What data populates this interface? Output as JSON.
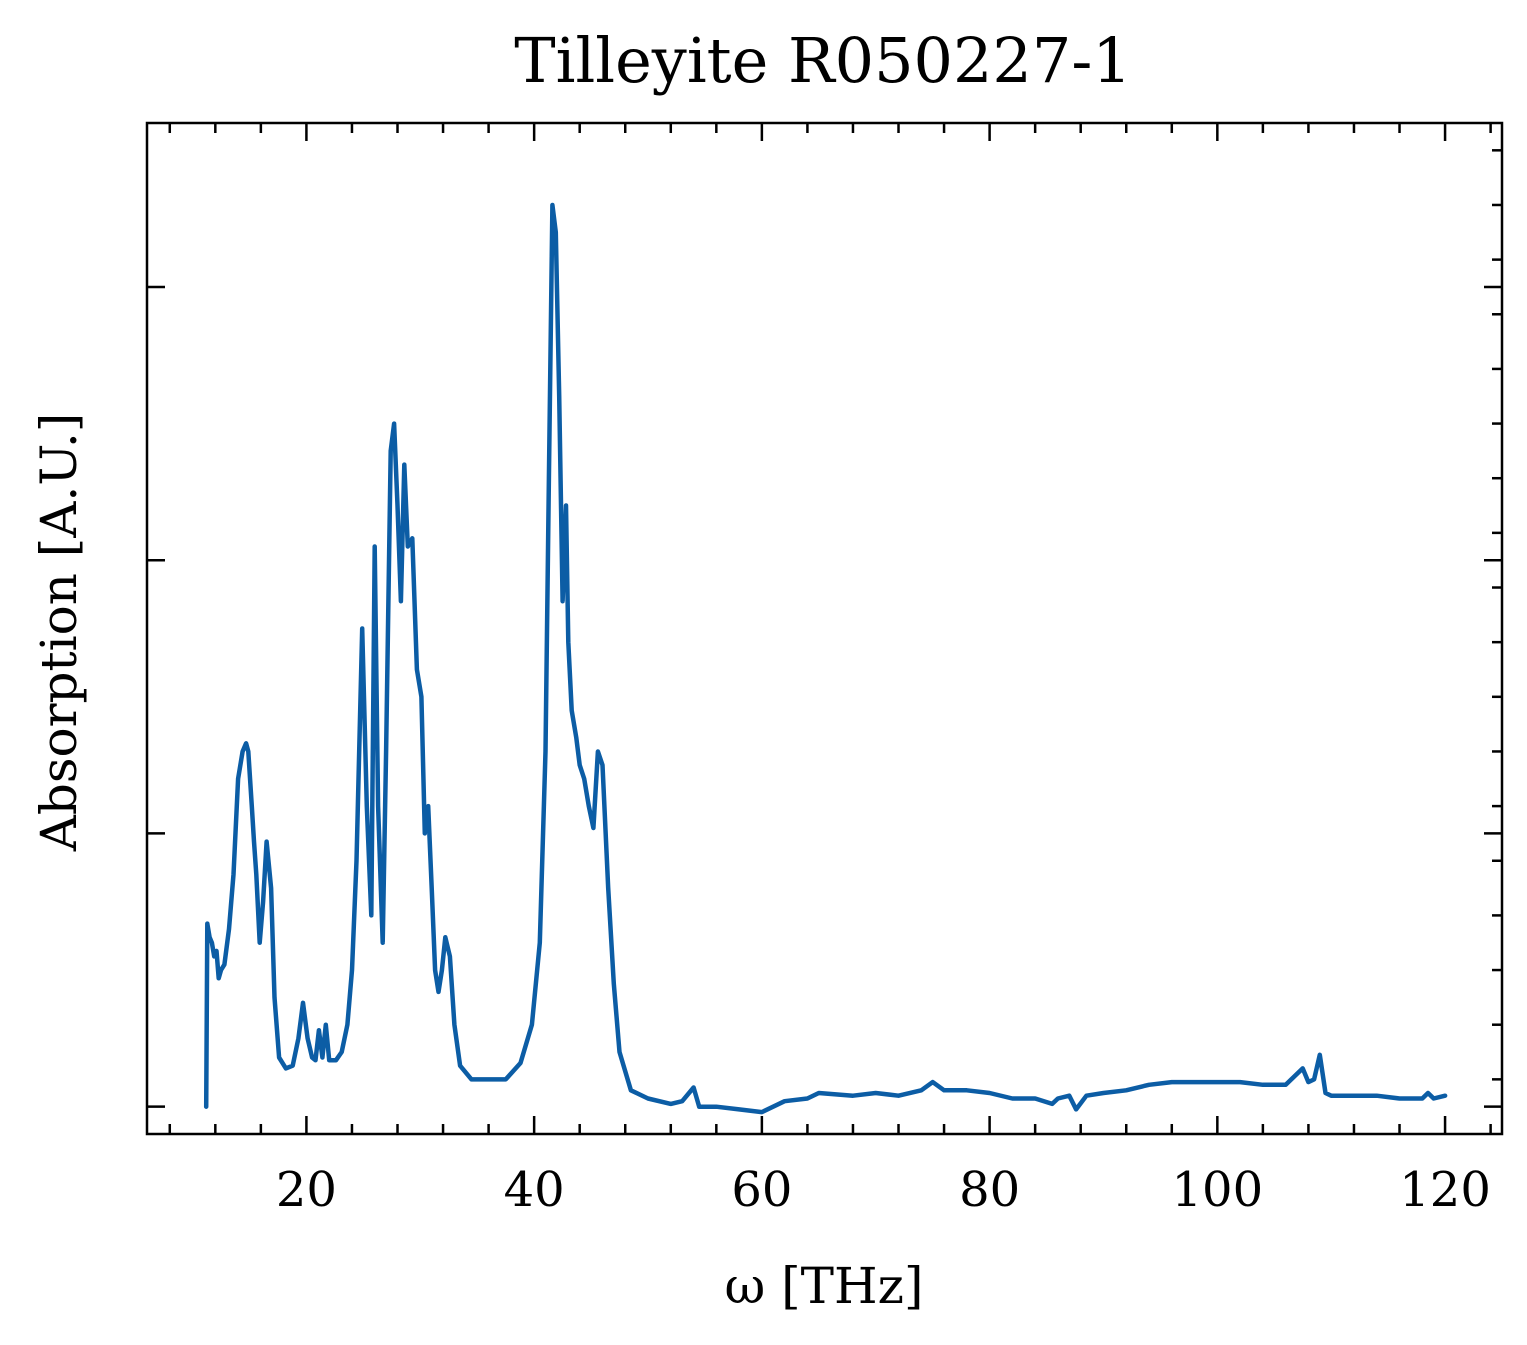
{
  "chart_data": {
    "type": "line",
    "title": "Tilleyite R050227-1",
    "xlabel": "ω [THz]",
    "ylabel": "Absorption [A.U.]",
    "xlim": [
      6,
      125
    ],
    "ylim": [
      -0.1,
      3.6
    ],
    "x_ticks": [
      20,
      40,
      60,
      80,
      100,
      120
    ],
    "x_tick_labels": [
      "20",
      "40",
      "60",
      "80",
      100,
      120
    ],
    "x_minor_step": 4,
    "y_ticks": [
      0,
      1,
      2,
      3
    ],
    "y_tick_labels_shown": false,
    "y_minor_step": 0.2,
    "grid": false,
    "line_color": "#0c5da5",
    "series": [
      {
        "values": [
          [
            11.2,
            0.0
          ],
          [
            11.3,
            0.67
          ],
          [
            11.5,
            0.62
          ],
          [
            11.7,
            0.6
          ],
          [
            11.9,
            0.55
          ],
          [
            12.1,
            0.57
          ],
          [
            12.3,
            0.47
          ],
          [
            12.5,
            0.5
          ],
          [
            12.8,
            0.52
          ],
          [
            13.2,
            0.65
          ],
          [
            13.6,
            0.85
          ],
          [
            14.0,
            1.2
          ],
          [
            14.4,
            1.3
          ],
          [
            14.7,
            1.33
          ],
          [
            14.9,
            1.3
          ],
          [
            15.2,
            1.1
          ],
          [
            15.4,
            0.97
          ],
          [
            15.6,
            0.85
          ],
          [
            15.9,
            0.6
          ],
          [
            16.2,
            0.75
          ],
          [
            16.5,
            0.97
          ],
          [
            16.9,
            0.8
          ],
          [
            17.2,
            0.4
          ],
          [
            17.6,
            0.18
          ],
          [
            18.2,
            0.14
          ],
          [
            18.8,
            0.15
          ],
          [
            19.3,
            0.25
          ],
          [
            19.7,
            0.38
          ],
          [
            20.1,
            0.25
          ],
          [
            20.5,
            0.18
          ],
          [
            20.8,
            0.17
          ],
          [
            21.1,
            0.28
          ],
          [
            21.4,
            0.18
          ],
          [
            21.7,
            0.3
          ],
          [
            22.0,
            0.17
          ],
          [
            22.6,
            0.17
          ],
          [
            23.1,
            0.2
          ],
          [
            23.6,
            0.3
          ],
          [
            24.0,
            0.5
          ],
          [
            24.4,
            0.9
          ],
          [
            24.9,
            1.75
          ],
          [
            25.3,
            1.1
          ],
          [
            25.7,
            0.7
          ],
          [
            26.0,
            2.05
          ],
          [
            26.3,
            1.1
          ],
          [
            26.7,
            0.6
          ],
          [
            27.0,
            1.3
          ],
          [
            27.4,
            2.4
          ],
          [
            27.7,
            2.5
          ],
          [
            28.0,
            2.2
          ],
          [
            28.3,
            1.85
          ],
          [
            28.6,
            2.35
          ],
          [
            28.9,
            2.05
          ],
          [
            29.3,
            2.08
          ],
          [
            29.7,
            1.6
          ],
          [
            30.1,
            1.5
          ],
          [
            30.4,
            1.0
          ],
          [
            30.7,
            1.1
          ],
          [
            31.0,
            0.8
          ],
          [
            31.3,
            0.5
          ],
          [
            31.6,
            0.42
          ],
          [
            31.9,
            0.5
          ],
          [
            32.2,
            0.62
          ],
          [
            32.6,
            0.55
          ],
          [
            33.0,
            0.3
          ],
          [
            33.5,
            0.15
          ],
          [
            34.5,
            0.1
          ],
          [
            36.0,
            0.1
          ],
          [
            37.5,
            0.1
          ],
          [
            38.8,
            0.16
          ],
          [
            39.8,
            0.3
          ],
          [
            40.5,
            0.6
          ],
          [
            41.0,
            1.3
          ],
          [
            41.3,
            2.3
          ],
          [
            41.6,
            3.3
          ],
          [
            41.9,
            3.2
          ],
          [
            42.2,
            2.6
          ],
          [
            42.5,
            1.85
          ],
          [
            42.8,
            2.2
          ],
          [
            43.0,
            1.7
          ],
          [
            43.3,
            1.45
          ],
          [
            43.7,
            1.35
          ],
          [
            44.0,
            1.25
          ],
          [
            44.4,
            1.2
          ],
          [
            44.8,
            1.1
          ],
          [
            45.2,
            1.02
          ],
          [
            45.6,
            1.3
          ],
          [
            46.0,
            1.25
          ],
          [
            46.5,
            0.8
          ],
          [
            47.0,
            0.45
          ],
          [
            47.5,
            0.2
          ],
          [
            48.5,
            0.06
          ],
          [
            50,
            0.03
          ],
          [
            52,
            0.01
          ],
          [
            53,
            0.02
          ],
          [
            54,
            0.07
          ],
          [
            54.5,
            0.0
          ],
          [
            56,
            0.0
          ],
          [
            58,
            -0.01
          ],
          [
            60,
            -0.02
          ],
          [
            62,
            0.02
          ],
          [
            64,
            0.03
          ],
          [
            65,
            0.05
          ],
          [
            68,
            0.04
          ],
          [
            70,
            0.05
          ],
          [
            72,
            0.04
          ],
          [
            74,
            0.06
          ],
          [
            75,
            0.09
          ],
          [
            76,
            0.06
          ],
          [
            78,
            0.06
          ],
          [
            80,
            0.05
          ],
          [
            82,
            0.03
          ],
          [
            84,
            0.03
          ],
          [
            85.5,
            0.01
          ],
          [
            86,
            0.03
          ],
          [
            87,
            0.04
          ],
          [
            87.6,
            -0.01
          ],
          [
            88.5,
            0.04
          ],
          [
            90,
            0.05
          ],
          [
            92,
            0.06
          ],
          [
            94,
            0.08
          ],
          [
            96,
            0.09
          ],
          [
            98,
            0.09
          ],
          [
            100,
            0.09
          ],
          [
            102,
            0.09
          ],
          [
            104,
            0.08
          ],
          [
            106,
            0.08
          ],
          [
            107.5,
            0.14
          ],
          [
            108,
            0.09
          ],
          [
            108.5,
            0.1
          ],
          [
            109,
            0.19
          ],
          [
            109.5,
            0.05
          ],
          [
            110,
            0.04
          ],
          [
            112,
            0.04
          ],
          [
            114,
            0.04
          ],
          [
            116,
            0.03
          ],
          [
            118,
            0.03
          ],
          [
            118.5,
            0.05
          ],
          [
            119,
            0.03
          ],
          [
            120,
            0.04
          ]
        ]
      }
    ]
  }
}
